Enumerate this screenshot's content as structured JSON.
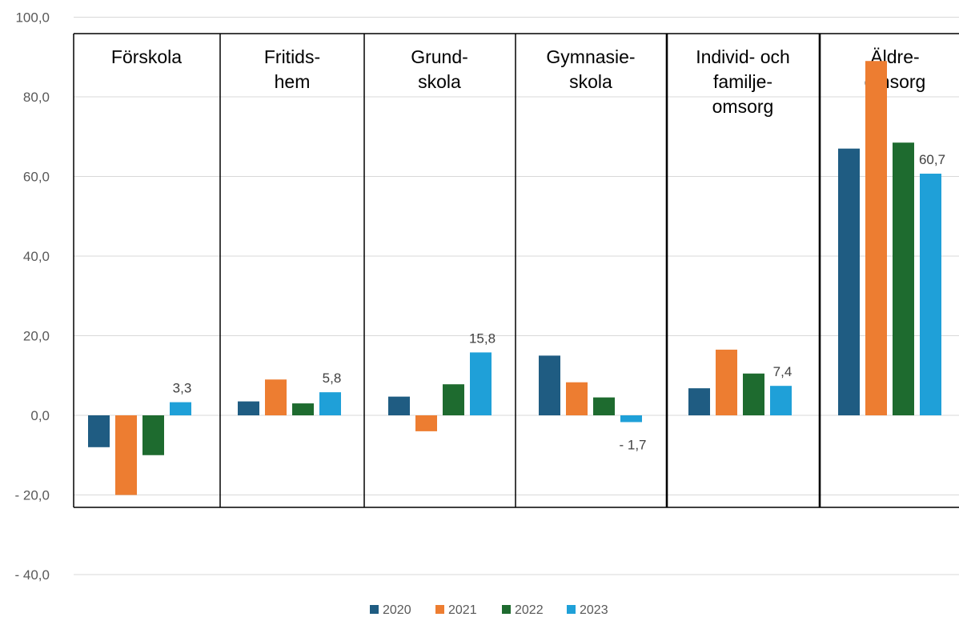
{
  "chart_data": {
    "type": "bar",
    "title": "",
    "xlabel": "",
    "ylabel": "",
    "ylim": [
      -40,
      100
    ],
    "yticks": [
      "100,0",
      "80,0",
      "60,0",
      "40,0",
      "20,0",
      "0,0",
      "- 20,0",
      "- 40,0"
    ],
    "grid": true,
    "legend_position": "bottom",
    "categories": [
      {
        "label_lines": [
          "Förskola"
        ]
      },
      {
        "label_lines": [
          "Fritids-",
          "hem"
        ]
      },
      {
        "label_lines": [
          "Grund-",
          "skola"
        ]
      },
      {
        "label_lines": [
          "Gymnasie-",
          "skola"
        ]
      },
      {
        "label_lines": [
          "Individ- och",
          "familje-",
          "omsorg"
        ]
      },
      {
        "label_lines": [
          "Äldre-",
          "omsorg"
        ]
      }
    ],
    "series": [
      {
        "name": "2020",
        "color": "#1f5c82",
        "values": [
          -8.0,
          3.5,
          4.7,
          15.0,
          6.8,
          67.0
        ]
      },
      {
        "name": "2021",
        "color": "#ed7d31",
        "values": [
          -20.0,
          9.0,
          -4.0,
          8.3,
          16.5,
          89.0
        ]
      },
      {
        "name": "2022",
        "color": "#1e6b2f",
        "values": [
          -10.0,
          3.0,
          7.8,
          4.5,
          10.5,
          68.5
        ]
      },
      {
        "name": "2023",
        "color": "#1fa0d8",
        "values": [
          3.3,
          5.8,
          15.8,
          -1.7,
          7.4,
          60.7
        ]
      }
    ],
    "data_labels": [
      "3,3",
      "5,8",
      "15,8",
      "- 1,7",
      "7,4",
      "60,7"
    ],
    "data_label_series": "2023"
  }
}
